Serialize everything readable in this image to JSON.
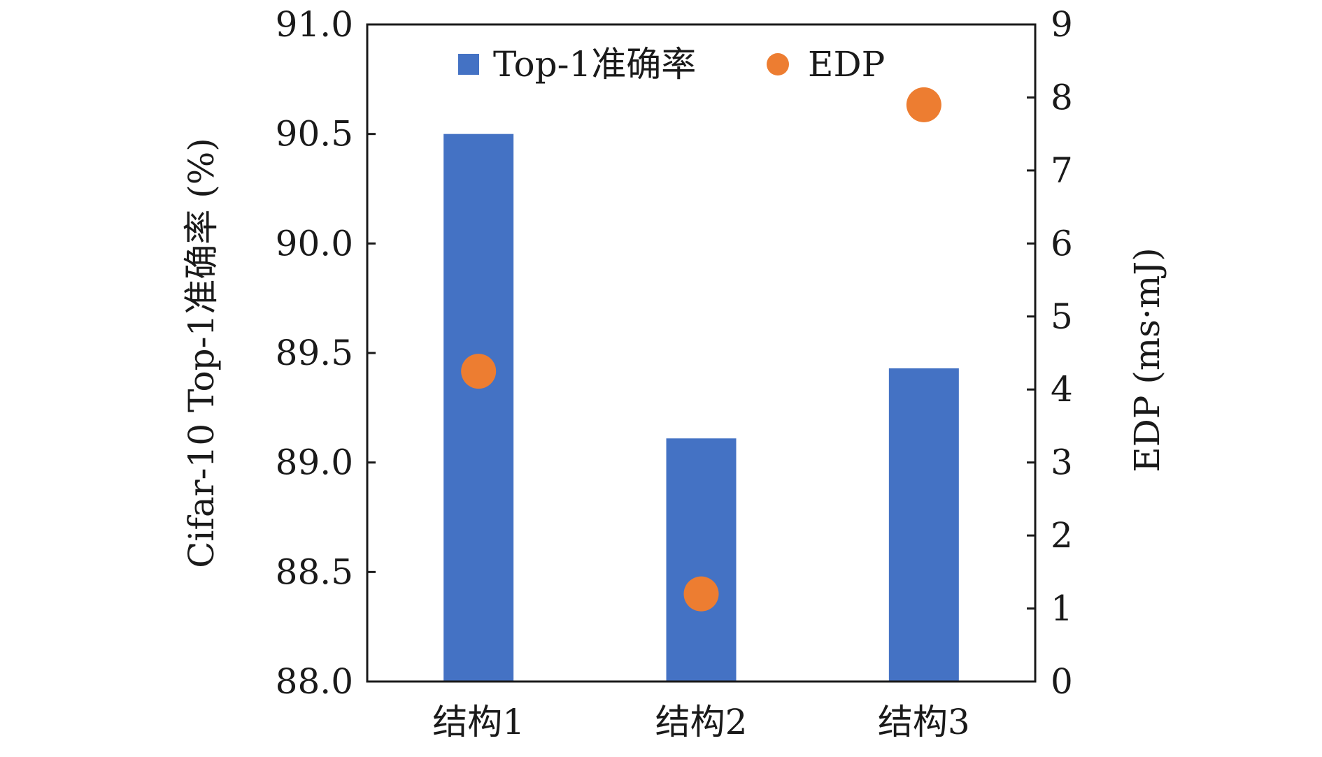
{
  "chart_data": {
    "type": "bar",
    "categories": [
      "结构1",
      "结构2",
      "结构3"
    ],
    "series": [
      {
        "name": "Top-1准确率",
        "type": "bar",
        "axis": "left",
        "color": "#4472C4",
        "values": [
          90.5,
          89.11,
          89.43
        ]
      },
      {
        "name": "EDP",
        "type": "scatter",
        "axis": "right",
        "color": "#ED7D31",
        "values": [
          4.25,
          1.2,
          7.9
        ]
      }
    ],
    "ylabel": "Cifar-10 Top-1准确率 (%)",
    "y2label": "EDP (ms·mJ)",
    "ylim": [
      88.0,
      91.0
    ],
    "y2lim": [
      0,
      9
    ],
    "yticks": [
      "88.0",
      "88.5",
      "89.0",
      "89.5",
      "90.0",
      "90.5",
      "91.0"
    ],
    "y2ticks": [
      "0",
      "1",
      "2",
      "3",
      "4",
      "5",
      "6",
      "7",
      "8",
      "9"
    ],
    "grid": false,
    "legend": "top-center"
  }
}
